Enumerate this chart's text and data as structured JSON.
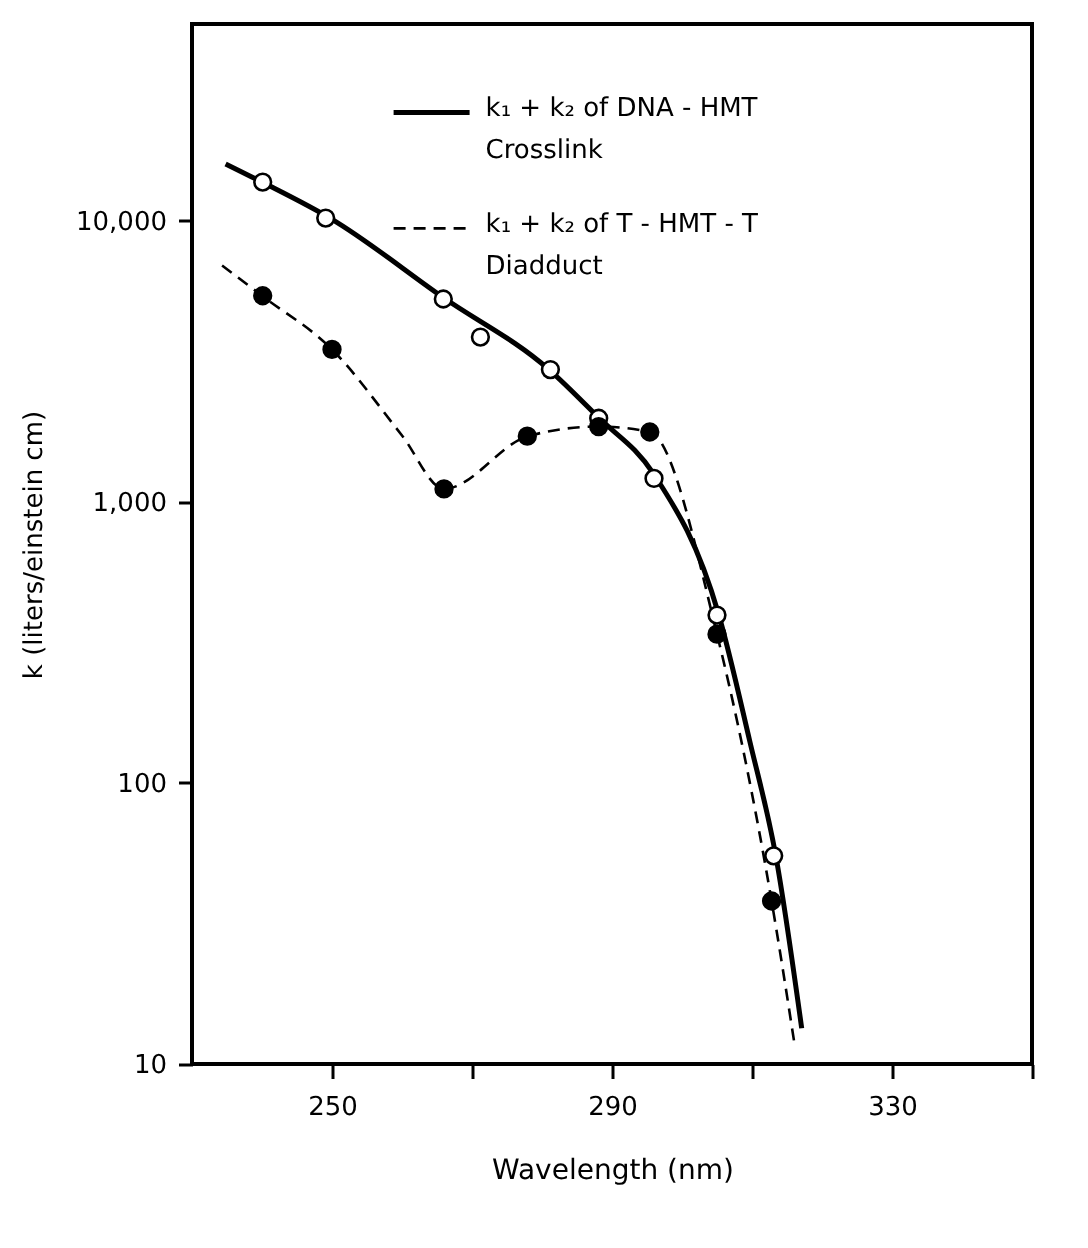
{
  "chart_data": {
    "type": "line",
    "xlabel": "Wavelength (nm)",
    "ylabel": "k (liters/einstein cm)",
    "xlim": [
      230,
      350
    ],
    "xticks": [
      250,
      {
        "value": 270,
        "label": null
      },
      290,
      {
        "value": 310,
        "label": null
      },
      330,
      {
        "value": 350,
        "label": null
      }
    ],
    "ylim": [
      10,
      50000
    ],
    "yticks": [
      10,
      100,
      {
        "value": 1000,
        "label": "1,000"
      },
      {
        "value": 10000,
        "label": "10,000"
      }
    ],
    "log": "y",
    "grid": false,
    "legend": "top right",
    "series": [
      {
        "name": "k₁ + k₂ of DNA - HMT Crosslink",
        "line_style": "solid",
        "color": "#000000",
        "x": [
          234.8,
          240,
          250,
          266,
          281,
          288,
          296,
          305.2,
          309.7,
          313.4,
          317.1
        ],
        "values": [
          15900,
          13700,
          10100,
          5300,
          2950,
          2000,
          1250,
          400,
          140,
          55,
          13.4
        ]
      },
      {
        "name": "k₁ + k₂ of T - HMT - T Diadduct",
        "line_style": "dashed",
        "color": "#000000",
        "x": [
          234.3,
          240,
          250,
          260,
          266,
          278,
          288,
          295.4,
          305,
          312.8,
          316
        ],
        "values": [
          6920,
          5400,
          3480,
          1720,
          1110,
          1710,
          1850,
          1770,
          338,
          38,
          12.1
        ]
      },
      {
        "type": "scatter",
        "marker": "circle",
        "color": "#ffffff",
        "x": [
          240.1,
          249.1,
          265.9,
          271.2,
          281.2,
          288.1,
          296,
          305,
          313.1
        ],
        "values": [
          13700,
          10200,
          5260,
          3850,
          2950,
          1980,
          1210,
          395,
          55
        ]
      },
      {
        "type": "scatter",
        "marker": "circle",
        "color": "#000000",
        "x": [
          240.1,
          250,
          266,
          277.9,
          288.1,
          295.4,
          305,
          312.8
        ],
        "values": [
          5400,
          3480,
          1110,
          1710,
          1850,
          1770,
          338,
          38
        ]
      }
    ]
  }
}
